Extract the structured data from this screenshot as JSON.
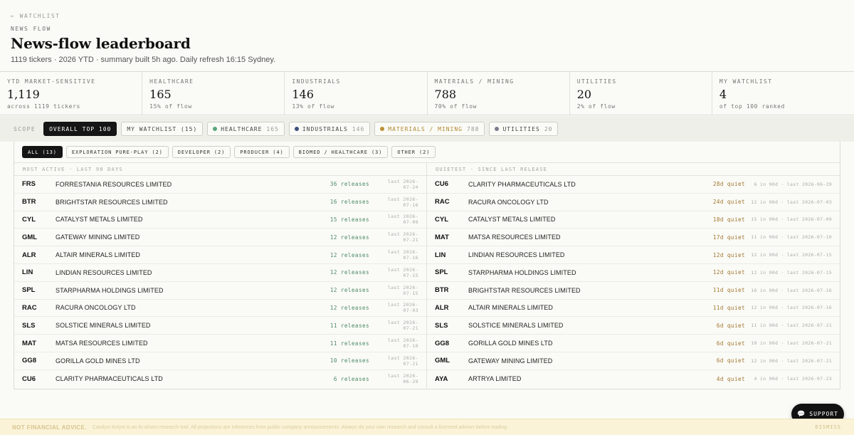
{
  "header": {
    "back_link": "← WATCHLIST",
    "eyebrow": "NEWS FLOW",
    "title": "News-flow leaderboard",
    "subtitle": "1119 tickers · 2026 YTD · summary built 5h ago. Daily refresh 16:15 Sydney."
  },
  "stats": [
    {
      "label": "YTD MARKET-SENSITIVE",
      "value": "1,119",
      "note": "across 1119 tickers"
    },
    {
      "label": "HEALTHCARE",
      "value": "165",
      "note": "15% of flow"
    },
    {
      "label": "INDUSTRIALS",
      "value": "146",
      "note": "13% of flow"
    },
    {
      "label": "MATERIALS / MINING",
      "value": "788",
      "note": "70% of flow"
    },
    {
      "label": "UTILITIES",
      "value": "20",
      "note": "2% of flow"
    },
    {
      "label": "MY WATCHLIST",
      "value": "4",
      "note": "of top 100 ranked"
    }
  ],
  "scope": {
    "label": "SCOPE",
    "chips": [
      {
        "label": "OVERALL TOP 100",
        "count": ""
      },
      {
        "label": "MY WATCHLIST (15)",
        "count": ""
      },
      {
        "label": "HEALTHCARE",
        "count": "165",
        "color": "#5aa57a"
      },
      {
        "label": "INDUSTRIALS",
        "count": "146",
        "color": "#3d4f7c"
      },
      {
        "label": "MATERIALS / MINING",
        "count": "788",
        "color": "#b99136"
      },
      {
        "label": "UTILITIES",
        "count": "20",
        "color": "#7d7a8c"
      }
    ]
  },
  "subfilters": [
    "ALL (13)",
    "EXPLORATION PURE-PLAY (2)",
    "DEVELOPER (2)",
    "PRODUCER (4)",
    "BIOMED / HEALTHCARE (3)",
    "OTHER (2)"
  ],
  "most_active": {
    "heading": "MOST ACTIVE · LAST 90 DAYS",
    "rows": [
      {
        "ticker": "FRS",
        "name": "FORRESTANIA RESOURCES LIMITED",
        "metric": "36 releases",
        "last": "last 2026-07-24"
      },
      {
        "ticker": "BTR",
        "name": "BRIGHTSTAR RESOURCES LIMITED",
        "metric": "16 releases",
        "last": "last 2026-07-16"
      },
      {
        "ticker": "CYL",
        "name": "CATALYST METALS LIMITED",
        "metric": "15 releases",
        "last": "last 2026-07-09"
      },
      {
        "ticker": "GML",
        "name": "GATEWAY MINING LIMITED",
        "metric": "12 releases",
        "last": "last 2026-07-21"
      },
      {
        "ticker": "ALR",
        "name": "ALTAIR MINERALS LIMITED",
        "metric": "12 releases",
        "last": "last 2026-07-16"
      },
      {
        "ticker": "LIN",
        "name": "LINDIAN RESOURCES LIMITED",
        "metric": "12 releases",
        "last": "last 2026-07-15"
      },
      {
        "ticker": "SPL",
        "name": "STARPHARMA HOLDINGS LIMITED",
        "metric": "12 releases",
        "last": "last 2026-07-15"
      },
      {
        "ticker": "RAC",
        "name": "RACURA ONCOLOGY LTD",
        "metric": "12 releases",
        "last": "last 2026-07-03"
      },
      {
        "ticker": "SLS",
        "name": "SOLSTICE MINERALS LIMITED",
        "metric": "11 releases",
        "last": "last 2026-07-21"
      },
      {
        "ticker": "MAT",
        "name": "MATSA RESOURCES LIMITED",
        "metric": "11 releases",
        "last": "last 2026-07-10"
      },
      {
        "ticker": "GG8",
        "name": "GORILLA GOLD MINES LTD",
        "metric": "10 releases",
        "last": "last 2026-07-21"
      },
      {
        "ticker": "CU6",
        "name": "CLARITY PHARMACEUTICALS LTD",
        "metric": "6 releases",
        "last": "last 2026-06-29"
      }
    ]
  },
  "quietest": {
    "heading": "QUIETEST · SINCE LAST RELEASE",
    "rows": [
      {
        "ticker": "CU6",
        "name": "CLARITY PHARMACEUTICALS LTD",
        "metric": "28d quiet",
        "detail": "6 in 90d · last 2026-06-29"
      },
      {
        "ticker": "RAC",
        "name": "RACURA ONCOLOGY LTD",
        "metric": "24d quiet",
        "detail": "12 in 90d · last 2026-07-03"
      },
      {
        "ticker": "CYL",
        "name": "CATALYST METALS LIMITED",
        "metric": "18d quiet",
        "detail": "15 in 90d · last 2026-07-09"
      },
      {
        "ticker": "MAT",
        "name": "MATSA RESOURCES LIMITED",
        "metric": "17d quiet",
        "detail": "11 in 90d · last 2026-07-10"
      },
      {
        "ticker": "LIN",
        "name": "LINDIAN RESOURCES LIMITED",
        "metric": "12d quiet",
        "detail": "12 in 90d · last 2026-07-15"
      },
      {
        "ticker": "SPL",
        "name": "STARPHARMA HOLDINGS LIMITED",
        "metric": "12d quiet",
        "detail": "12 in 90d · last 2026-07-15"
      },
      {
        "ticker": "BTR",
        "name": "BRIGHTSTAR RESOURCES LIMITED",
        "metric": "11d quiet",
        "detail": "16 in 90d · last 2026-07-16"
      },
      {
        "ticker": "ALR",
        "name": "ALTAIR MINERALS LIMITED",
        "metric": "11d quiet",
        "detail": "12 in 90d · last 2026-07-16"
      },
      {
        "ticker": "SLS",
        "name": "SOLSTICE MINERALS LIMITED",
        "metric": "6d quiet",
        "detail": "11 in 90d · last 2026-07-21"
      },
      {
        "ticker": "GG8",
        "name": "GORILLA GOLD MINES LTD",
        "metric": "6d quiet",
        "detail": "10 in 90d · last 2026-07-21"
      },
      {
        "ticker": "GML",
        "name": "GATEWAY MINING LIMITED",
        "metric": "6d quiet",
        "detail": "12 in 90d · last 2026-07-21"
      },
      {
        "ticker": "AYA",
        "name": "ARTRYA LIMITED",
        "metric": "4d quiet",
        "detail": "4 in 90d · last 2026-07-23"
      }
    ]
  },
  "footer": {
    "strong": "NOT FINANCIAL ADVICE.",
    "text": "Catalyst Anlyst is an AI-driven research tool. All projections are inferences from public company announcements. Always do your own research and consult a licensed adviser before trading.",
    "dismiss": "DISMISS"
  },
  "support": {
    "label": "SUPPORT",
    "icon": "chat-bubble-icon"
  },
  "colors": {
    "accent_green": "#4a8a66",
    "accent_amber": "#a0742c",
    "ink": "#151515",
    "footer_bg": "#fbf3d8"
  }
}
